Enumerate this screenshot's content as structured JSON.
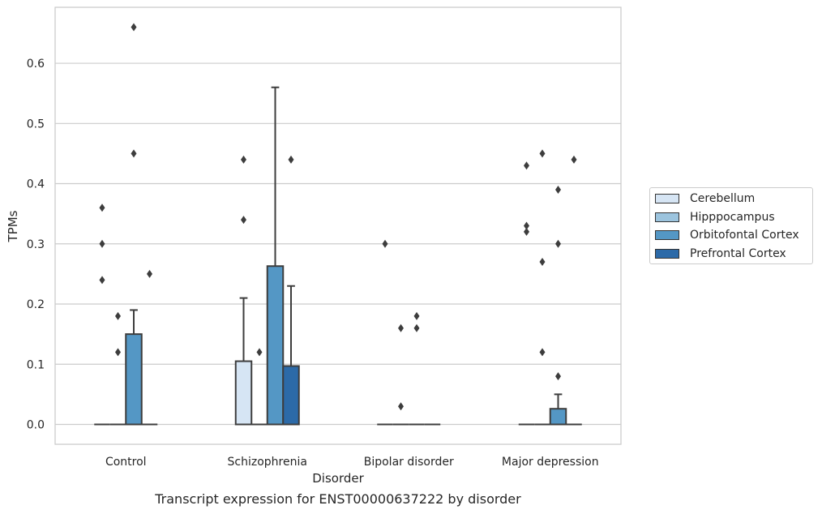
{
  "caption": "Transcript expression for ENST00000637222 by disorder",
  "chart_data": {
    "type": "box",
    "title": "",
    "xlabel": "Disorder",
    "ylabel": "TPMs",
    "ylim": [
      -0.033,
      0.693
    ],
    "yticks": [
      0.0,
      0.1,
      0.2,
      0.3,
      0.4,
      0.5,
      0.6
    ],
    "ytick_labels": [
      "0.0",
      "0.1",
      "0.2",
      "0.3",
      "0.4",
      "0.5",
      "0.6"
    ],
    "grid": true,
    "legend_placement": "right",
    "categories": [
      "Control",
      "Schizophrenia",
      "Bipolar disorder",
      "Major depression"
    ],
    "series": [
      {
        "name": "Cerebellum",
        "color": "#d6e5f4",
        "boxes": [
          {
            "q1": 0,
            "median": 0,
            "q3": 0,
            "whisker_low": 0,
            "whisker_high": 0,
            "outliers": [
              0.24,
              0.3,
              0.36
            ]
          },
          {
            "q1": 0,
            "median": 0,
            "q3": 0.105,
            "whisker_low": 0,
            "whisker_high": 0.21,
            "outliers": [
              0.34,
              0.44
            ]
          },
          {
            "q1": 0,
            "median": 0,
            "q3": 0,
            "whisker_low": 0,
            "whisker_high": 0,
            "outliers": [
              0.3
            ]
          },
          {
            "q1": 0,
            "median": 0,
            "q3": 0,
            "whisker_low": 0,
            "whisker_high": 0,
            "outliers": [
              0.32,
              0.33,
              0.43
            ]
          }
        ]
      },
      {
        "name": "Hipppocampus",
        "color": "#9cc4de",
        "boxes": [
          {
            "q1": 0,
            "median": 0,
            "q3": 0,
            "whisker_low": 0,
            "whisker_high": 0,
            "outliers": [
              0.12,
              0.18
            ]
          },
          {
            "q1": 0,
            "median": 0,
            "q3": 0,
            "whisker_low": 0,
            "whisker_high": 0,
            "outliers": [
              0.12
            ]
          },
          {
            "q1": 0,
            "median": 0,
            "q3": 0,
            "whisker_low": 0,
            "whisker_high": 0,
            "outliers": [
              0.03,
              0.16
            ]
          },
          {
            "q1": 0,
            "median": 0,
            "q3": 0,
            "whisker_low": 0,
            "whisker_high": 0,
            "outliers": [
              0.12,
              0.27,
              0.45
            ]
          }
        ]
      },
      {
        "name": "Orbitofontal Cortex",
        "color": "#5497c5",
        "boxes": [
          {
            "q1": 0,
            "median": 0,
            "q3": 0.15,
            "whisker_low": 0,
            "whisker_high": 0.19,
            "outliers": [
              0.45,
              0.66
            ]
          },
          {
            "q1": 0,
            "median": 0,
            "q3": 0.263,
            "whisker_low": 0,
            "whisker_high": 0.56,
            "outliers": []
          },
          {
            "q1": 0,
            "median": 0,
            "q3": 0,
            "whisker_low": 0,
            "whisker_high": 0,
            "outliers": [
              0.16,
              0.18
            ]
          },
          {
            "q1": 0,
            "median": 0,
            "q3": 0.026,
            "whisker_low": 0,
            "whisker_high": 0.05,
            "outliers": [
              0.08,
              0.3,
              0.39
            ]
          }
        ]
      },
      {
        "name": "Prefrontal Cortex",
        "color": "#2c6aa8",
        "boxes": [
          {
            "q1": 0,
            "median": 0,
            "q3": 0,
            "whisker_low": 0,
            "whisker_high": 0,
            "outliers": [
              0.25
            ]
          },
          {
            "q1": 0,
            "median": 0,
            "q3": 0.097,
            "whisker_low": 0,
            "whisker_high": 0.23,
            "outliers": [
              0.44
            ]
          },
          {
            "q1": 0,
            "median": 0,
            "q3": 0,
            "whisker_low": 0,
            "whisker_high": 0,
            "outliers": []
          },
          {
            "q1": 0,
            "median": 0,
            "q3": 0,
            "whisker_low": 0,
            "whisker_high": 0,
            "outliers": [
              0.44
            ]
          }
        ]
      }
    ]
  }
}
